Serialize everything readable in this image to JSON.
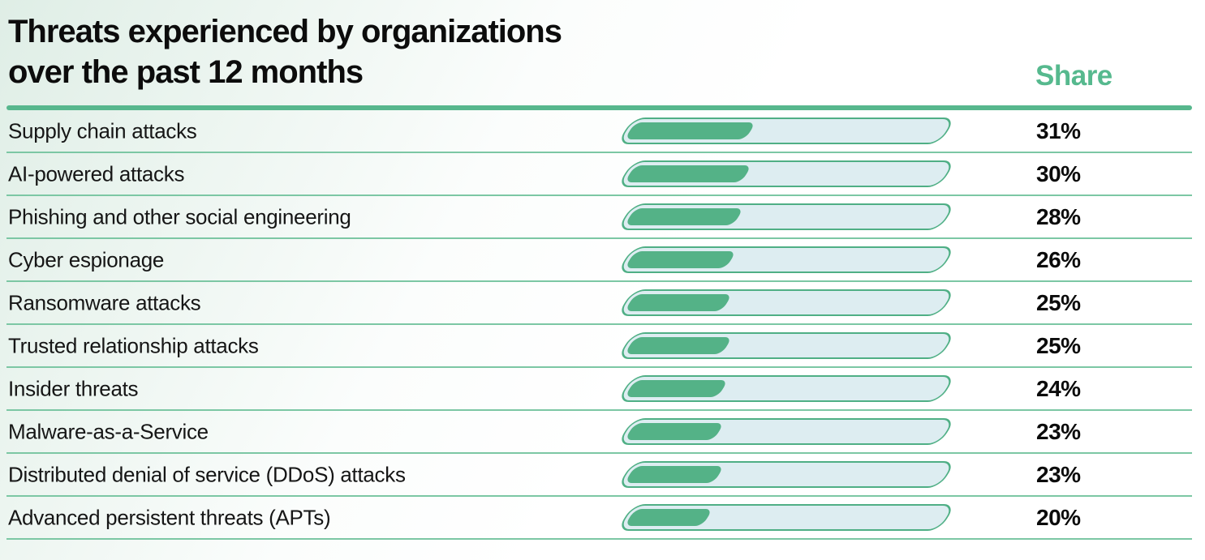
{
  "header": {
    "title_line1": "Threats experienced by organizations",
    "title_line2": "over the past 12 months",
    "share_label": "Share"
  },
  "chart_data": {
    "type": "bar",
    "orientation": "horizontal",
    "title": "Threats experienced by organizations over the past 12 months",
    "value_column_header": "Share",
    "unit": "%",
    "categories": [
      "Supply chain attacks",
      "AI-powered attacks",
      "Phishing and other social engineering",
      "Cyber espionage",
      "Ransomware attacks",
      "Trusted relationship attacks",
      "Insider threats",
      "Malware-as-a-Service",
      "Distributed denial of service (DDoS) attacks",
      "Advanced persistent threats (APTs)"
    ],
    "values": [
      31,
      30,
      28,
      26,
      25,
      25,
      24,
      23,
      23,
      20
    ],
    "value_labels": [
      "31%",
      "30%",
      "28%",
      "26%",
      "25%",
      "25%",
      "24%",
      "23%",
      "23%",
      "20%"
    ],
    "xlim_hint": [
      0,
      82
    ],
    "grid": "horizontal-separators",
    "legend": "none"
  },
  "colors": {
    "bar_fill_green": "#54b287",
    "bar_track_light": "#ddedf1",
    "bar_track_border": "#4faf85",
    "row_separator": "#7cc7a4",
    "header_rule": "#57b78d",
    "share_header_green": "#56b98e",
    "title_text": "#0c0c0c",
    "label_text": "#161616",
    "background_tint": "#dfeee6"
  }
}
